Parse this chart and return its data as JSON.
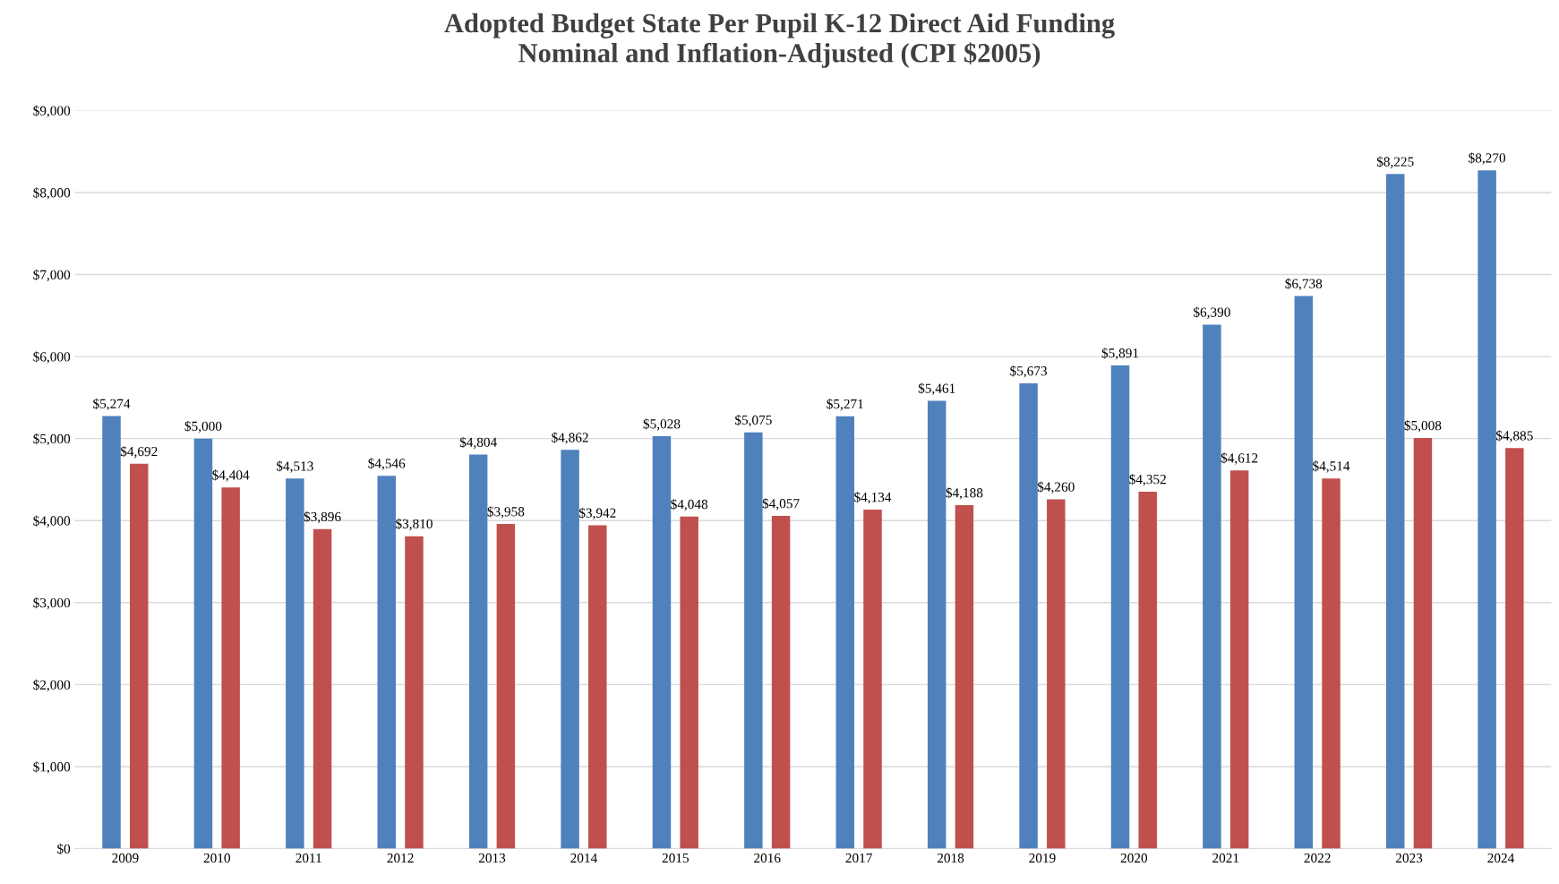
{
  "chart_data": {
    "type": "bar",
    "title": "Adopted Budget State Per Pupil K-12 Direct Aid Funding\nNominal and Inflation-Adjusted (CPI $2005)",
    "categories": [
      "2009",
      "2010",
      "2011",
      "2012",
      "2013",
      "2014",
      "2015",
      "2016",
      "2017",
      "2018",
      "2019",
      "2020",
      "2021",
      "2022",
      "2023",
      "2024"
    ],
    "series": [
      {
        "color": "#4f81bd",
        "values": [
          5274,
          5000,
          4513,
          4546,
          4804,
          4862,
          5028,
          5075,
          5271,
          5461,
          5673,
          5891,
          6390,
          6738,
          8225,
          8270
        ],
        "value_labels": [
          "$5,274",
          "$5,000",
          "$4,513",
          "$4,546",
          "$4,804",
          "$4,862",
          "$5,028",
          "$5,075",
          "$5,271",
          "$5,461",
          "$5,673",
          "$5,891",
          "$6,390",
          "$6,738",
          "$8,225",
          "$8,270"
        ]
      },
      {
        "color": "#c0504d",
        "values": [
          4692,
          4404,
          3896,
          3810,
          3958,
          3942,
          4048,
          4057,
          4134,
          4188,
          4260,
          4352,
          4612,
          4514,
          5008,
          4885
        ],
        "value_labels": [
          "$4,692",
          "$4,404",
          "$3,896",
          "$3,810",
          "$3,958",
          "$3,942",
          "$4,048",
          "$4,057",
          "$4,134",
          "$4,188",
          "$4,260",
          "$4,352",
          "$4,612",
          "$4,514",
          "$5,008",
          "$4,885"
        ]
      }
    ],
    "ylim": [
      0,
      9000
    ],
    "yticks": [
      {
        "value": 0,
        "label": "$0"
      },
      {
        "value": 1000,
        "label": "$1,000"
      },
      {
        "value": 2000,
        "label": "$2,000"
      },
      {
        "value": 3000,
        "label": "$3,000"
      },
      {
        "value": 4000,
        "label": "$4,000"
      },
      {
        "value": 5000,
        "label": "$5,000"
      },
      {
        "value": 6000,
        "label": "$6,000"
      },
      {
        "value": 7000,
        "label": "$7,000"
      },
      {
        "value": 8000,
        "label": "$8,000"
      },
      {
        "value": 9000,
        "label": "$9,000"
      }
    ],
    "grid": "y"
  }
}
